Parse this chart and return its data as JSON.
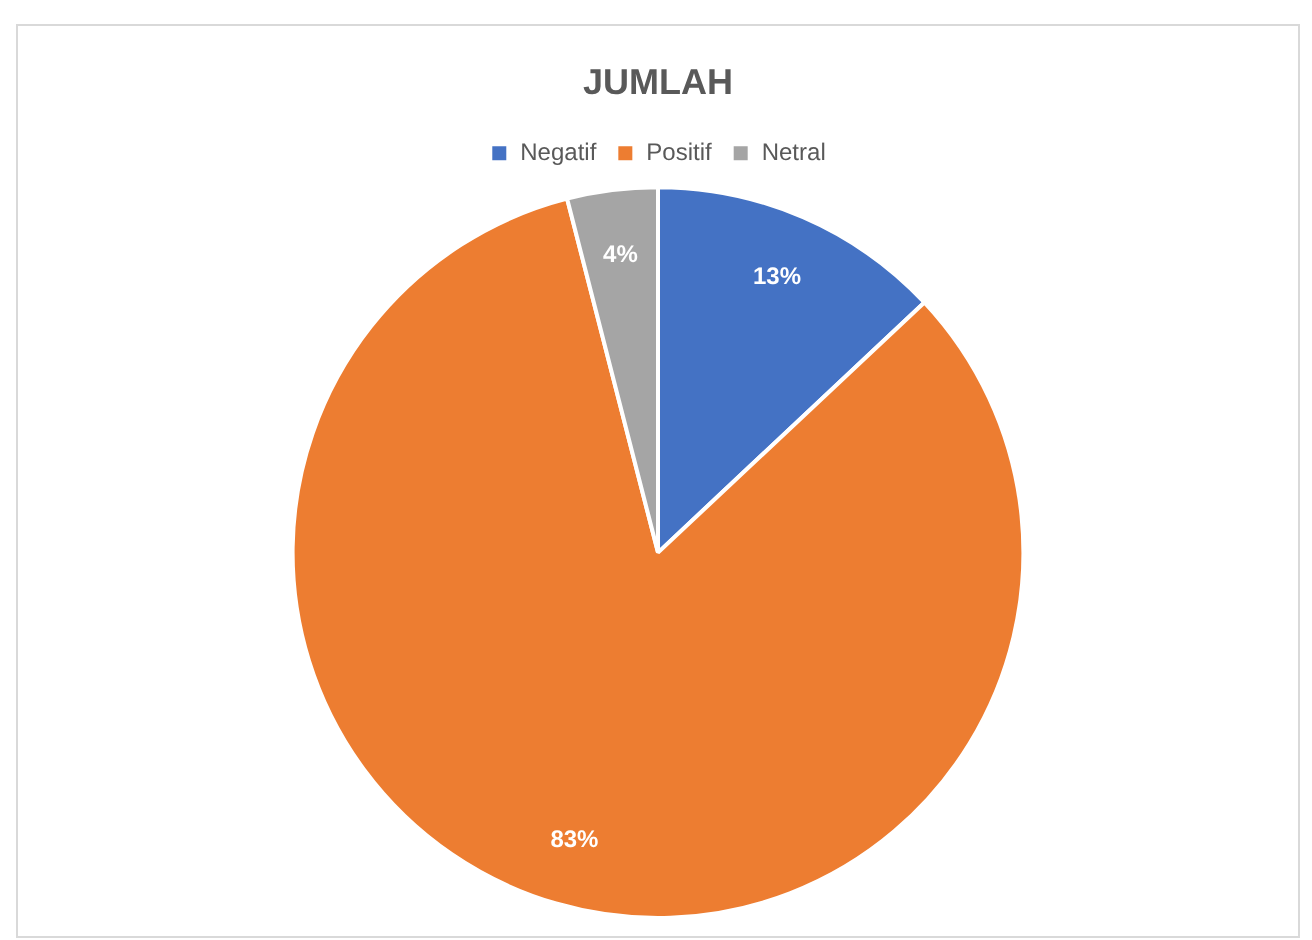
{
  "chart_data": {
    "type": "pie",
    "title": "JUMLAH",
    "categories": [
      "Negatif",
      "Positif",
      "Netral"
    ],
    "values": [
      13,
      83,
      4
    ],
    "colors": [
      "#4472c4",
      "#ed7d31",
      "#a5a5a5"
    ],
    "value_labels": [
      "13%",
      "83%",
      "4%"
    ],
    "legend": "top"
  }
}
